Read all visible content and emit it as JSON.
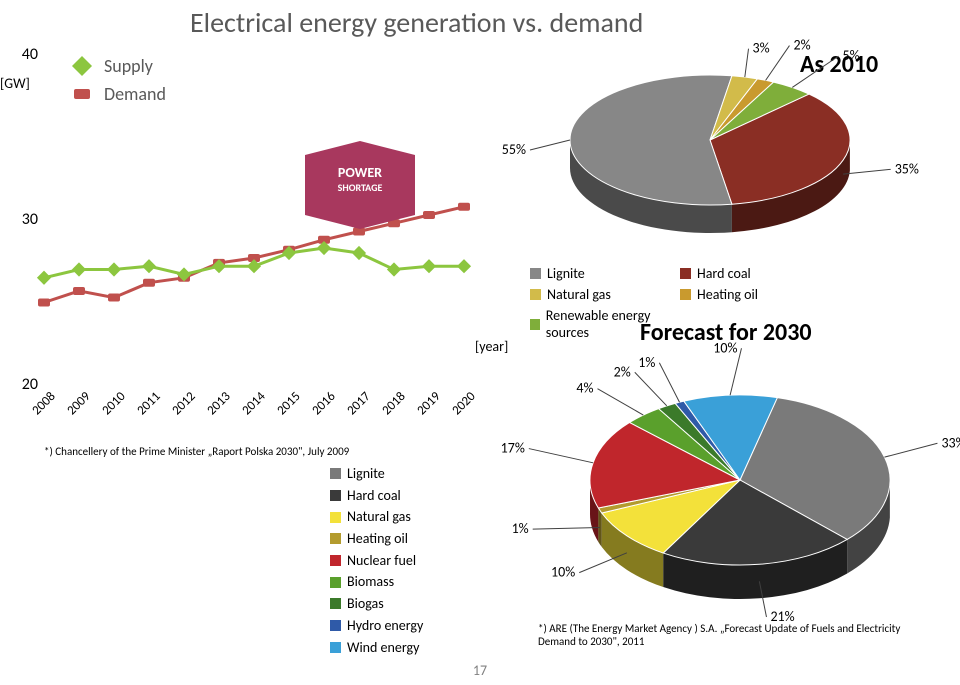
{
  "title": "Electrical energy generation vs. demand",
  "page_number": "17",
  "line_chart": {
    "y_axis_ticks": [
      20,
      30,
      40
    ],
    "y_unit": "[GW]",
    "x_years": [
      "2008",
      "2009",
      "2010",
      "2011",
      "2012",
      "2013",
      "2014",
      "2015",
      "2016",
      "2017",
      "2018",
      "2019",
      "2020"
    ],
    "x_unit": "[year]",
    "supply": {
      "color": "#8cc63f",
      "label": "Supply",
      "values": [
        26.5,
        27.0,
        27.0,
        27.2,
        26.7,
        27.2,
        27.2,
        28.0,
        28.3,
        28.0,
        27.0,
        27.2,
        27.2
      ]
    },
    "demand": {
      "color": "#c0504d",
      "label": "Demand",
      "values": [
        25.0,
        25.7,
        25.3,
        26.2,
        26.5,
        27.4,
        27.7,
        28.2,
        28.8,
        29.3,
        29.8,
        30.3,
        30.8
      ]
    },
    "ylim": [
      20,
      40
    ]
  },
  "shortage": {
    "line1": "POWER",
    "line2": "SHORTAGE"
  },
  "footnote_left": "*) Chancellery of the Prime Minister „Raport Polska 2030\", July 2009",
  "pie2010": {
    "title": "As 2010",
    "slices": [
      {
        "label": "35%",
        "value": 35,
        "color": "#8a2e24",
        "leg": "Hard coal"
      },
      {
        "label": "55%",
        "value": 55,
        "color": "#878787",
        "leg": "Lignite"
      },
      {
        "label": "3%",
        "value": 3,
        "color": "#d2bb4a",
        "leg": "Natural gas"
      },
      {
        "label": "2%",
        "value": 2,
        "color": "#c99a2e",
        "leg": "Heating oil"
      },
      {
        "label": "5%",
        "value": 5,
        "color": "#7fae3a",
        "leg": "Renewable energy sources"
      }
    ]
  },
  "legend2010": [
    {
      "c": "#878787",
      "t": "Lignite"
    },
    {
      "c": "#8a2e24",
      "t": "Hard coal"
    },
    {
      "c": "#d2bb4a",
      "t": "Natural gas"
    },
    {
      "c": "#c99a2e",
      "t": "Heating oil"
    },
    {
      "c": "#7fae3a",
      "t": "Renewable energy sources"
    }
  ],
  "forecast_title": "Forecast for 2030",
  "pie2030": {
    "slices": [
      {
        "label": "33%",
        "value": 33,
        "color": "#7a7a7a"
      },
      {
        "label": "21%",
        "value": 21,
        "color": "#3a3a3a"
      },
      {
        "label": "10%",
        "value": 10,
        "color": "#f3e13a"
      },
      {
        "label": "1%",
        "value": 1,
        "color": "#b39b2e"
      },
      {
        "label": "17%",
        "value": 17,
        "color": "#c0262c"
      },
      {
        "label": "4%",
        "value": 4,
        "color": "#5aa02c"
      },
      {
        "label": "2%",
        "value": 2,
        "color": "#3b7a2a"
      },
      {
        "label": "1%",
        "value": 1,
        "color": "#2f5aa8"
      },
      {
        "label": "10%",
        "value": 10,
        "color": "#3aa0d8"
      }
    ]
  },
  "legend2030": [
    {
      "c": "#7a7a7a",
      "t": "Lignite"
    },
    {
      "c": "#3a3a3a",
      "t": "Hard coal"
    },
    {
      "c": "#f3e13a",
      "t": "Natural gas"
    },
    {
      "c": "#b39b2e",
      "t": "Heating oil"
    },
    {
      "c": "#c0262c",
      "t": "Nuclear fuel"
    },
    {
      "c": "#5aa02c",
      "t": "Biomass"
    },
    {
      "c": "#3b7a2a",
      "t": "Biogas"
    },
    {
      "c": "#2f5aa8",
      "t": "Hydro energy"
    },
    {
      "c": "#3aa0d8",
      "t": "Wind energy"
    }
  ],
  "footnote_right": "*) ARE (The Energy Market Agency ) S.A. „Forecast Update of Fuels and Electricity Demand to 2030\", 2011"
}
